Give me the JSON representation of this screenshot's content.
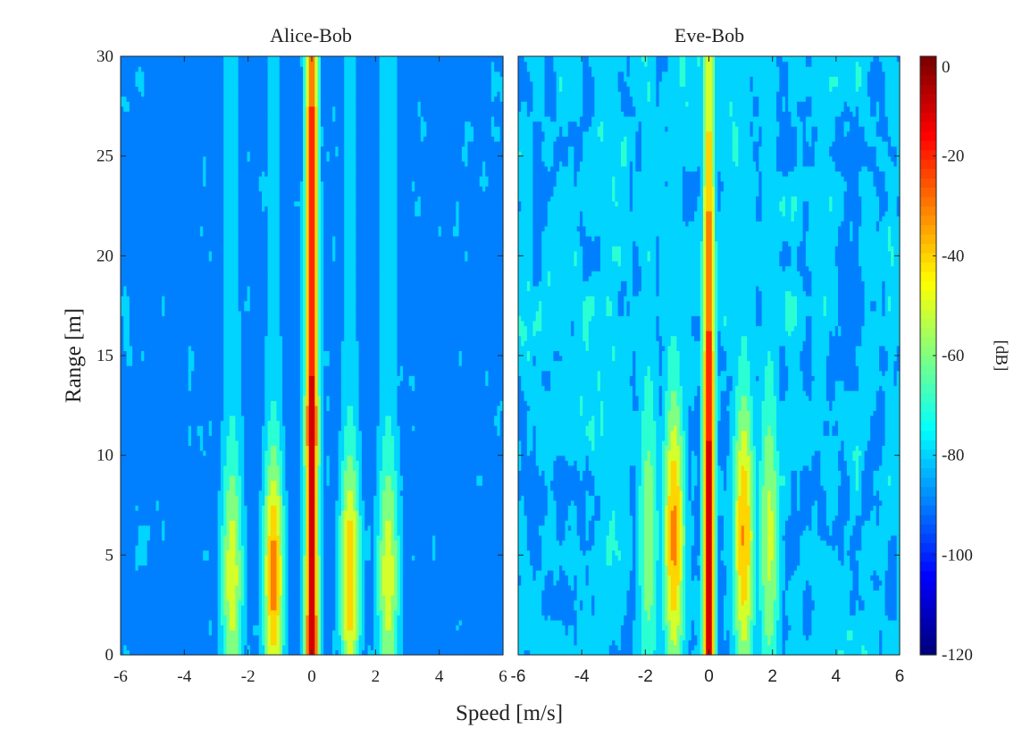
{
  "chart_data": [
    {
      "type": "heatmap",
      "title": "Alice-Bob",
      "xlabel": "Speed [m/s]",
      "ylabel": "Range [m]",
      "xlim": [
        -6,
        6
      ],
      "ylim": [
        0,
        30
      ],
      "x_ticks": [
        "-6",
        "-4",
        "-2",
        "0",
        "2",
        "4",
        "6"
      ],
      "y_ticks": [
        "0",
        "5",
        "10",
        "15",
        "20",
        "25",
        "30"
      ],
      "grid": false,
      "background_level_db": -90,
      "noise_level_db": -76,
      "ridges": [
        {
          "speed": 0,
          "width": 0.16,
          "peak_db": -8,
          "range_peak": 3,
          "range_sigma": 26,
          "background_db": -45
        },
        {
          "speed": -1.2,
          "width": 0.24,
          "peak_db": -30,
          "range_peak": 4,
          "range_sigma": 4.2
        },
        {
          "speed": 1.2,
          "width": 0.24,
          "peak_db": -36,
          "range_peak": 4,
          "range_sigma": 4.2
        },
        {
          "speed": -2.5,
          "width": 0.26,
          "peak_db": -48,
          "range_peak": 4,
          "range_sigma": 4.2
        },
        {
          "speed": 2.4,
          "width": 0.26,
          "peak_db": -48,
          "range_peak": 4,
          "range_sigma": 4.2
        }
      ]
    },
    {
      "type": "heatmap",
      "title": "Eve-Bob",
      "xlabel": "Speed [m/s]",
      "ylabel": "Range [m]",
      "xlim": [
        -6,
        6
      ],
      "ylim": [
        0,
        30
      ],
      "x_ticks": [
        "-6",
        "-4",
        "-2",
        "0",
        "2",
        "4",
        "6"
      ],
      "y_ticks": [],
      "grid": false,
      "background_level_db": -82,
      "noise_level_db": -80,
      "ridges": [
        {
          "speed": 0,
          "width": 0.15,
          "peak_db": -6,
          "range_peak": 2,
          "range_sigma": 20,
          "background_db": -72
        },
        {
          "speed": -1.1,
          "width": 0.26,
          "peak_db": -32,
          "range_peak": 6,
          "range_sigma": 4.8
        },
        {
          "speed": 1.1,
          "width": 0.26,
          "peak_db": -34,
          "range_peak": 6,
          "range_sigma": 4.8
        },
        {
          "speed": -1.9,
          "width": 0.26,
          "peak_db": -58,
          "range_peak": 6,
          "range_sigma": 5.0
        },
        {
          "speed": 1.9,
          "width": 0.26,
          "peak_db": -52,
          "range_peak": 6,
          "range_sigma": 5.0
        }
      ]
    }
  ],
  "colorbar": {
    "label": "[dB]",
    "colormap": "jet",
    "limits": [
      -120,
      0
    ],
    "ticks": [
      "0",
      "-20",
      "-40",
      "-60",
      "-80",
      "-100",
      "-120"
    ]
  },
  "shared_xlabel": "Speed [m/s]"
}
